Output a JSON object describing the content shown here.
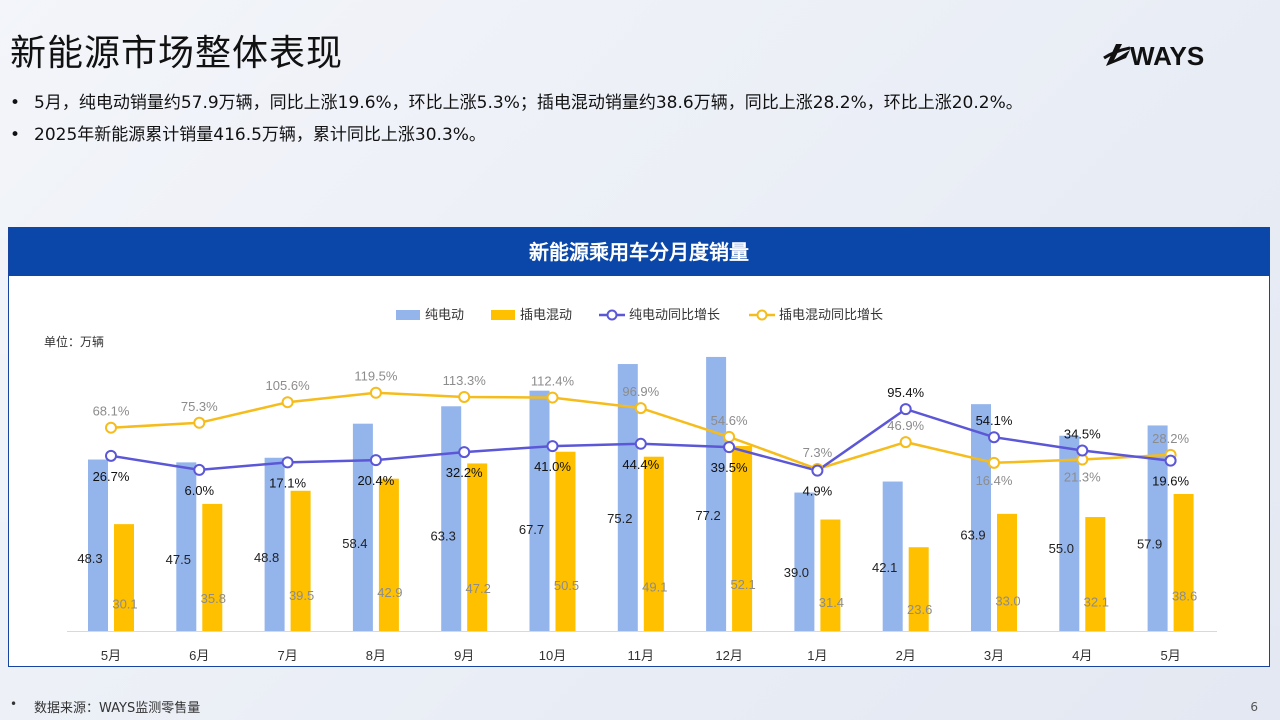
{
  "page": {
    "title": "新能源市场整体表现",
    "logo_text": "WAYS",
    "bullet_marker": "•",
    "bullets": [
      "5月，纯电动销量约57.9万辆，同比上涨19.6%，环比上涨5.3%；插电混动销量约38.6万辆，同比上涨28.2%，环比上涨20.2%。",
      "2025年新能源累计销量416.5万辆，累计同比上涨30.3%。"
    ],
    "footer_source": "数据来源：WAYS监测零售量",
    "page_number": "6"
  },
  "colors": {
    "header_bg": "#0b47a8",
    "bev_bar": "#94b5ec",
    "phev_bar": "#ffc000",
    "bev_line": "#5b57d6",
    "phev_line": "#f5bc1c"
  },
  "chart_data": {
    "type": "bar",
    "title": "新能源乘用车分月度销量",
    "unit_label": "单位：万辆",
    "legend_position": "top-center",
    "grid": false,
    "categories": [
      "5月",
      "6月",
      "7月",
      "8月",
      "9月",
      "10月",
      "11月",
      "12月",
      "1月",
      "2月",
      "3月",
      "4月",
      "5月"
    ],
    "series": [
      {
        "name": "纯电动",
        "kind": "bar",
        "values": [
          48.3,
          47.5,
          48.8,
          58.4,
          63.3,
          67.7,
          75.2,
          77.2,
          39.0,
          42.1,
          63.9,
          55.0,
          57.9
        ]
      },
      {
        "name": "插电混动",
        "kind": "bar",
        "values": [
          30.1,
          35.8,
          39.5,
          42.9,
          47.2,
          50.5,
          49.1,
          52.1,
          31.4,
          23.6,
          33.0,
          32.1,
          38.6
        ]
      },
      {
        "name": "纯电动同比增长",
        "kind": "line",
        "unit": "%",
        "values": [
          26.7,
          6.0,
          17.1,
          20.4,
          32.2,
          41.0,
          44.4,
          39.5,
          4.9,
          95.4,
          54.1,
          34.5,
          19.6
        ]
      },
      {
        "name": "插电混动同比增长",
        "kind": "line",
        "unit": "%",
        "values": [
          68.1,
          75.3,
          105.6,
          119.5,
          113.3,
          112.4,
          96.9,
          54.6,
          7.3,
          46.9,
          16.4,
          21.3,
          28.2
        ]
      }
    ],
    "bar_labels": {
      "bev": [
        "48.3",
        "47.5",
        "48.8",
        "58.4",
        "63.3",
        "67.7",
        "75.2",
        "77.2",
        "39.0",
        "42.1",
        "63.9",
        "55.0",
        "57.9"
      ],
      "phev": [
        "30.1",
        "35.8",
        "39.5",
        "42.9",
        "47.2",
        "50.5",
        "49.1",
        "52.1",
        "31.4",
        "23.6",
        "33.0",
        "32.1",
        "38.6"
      ]
    },
    "line_labels": {
      "bev": [
        "26.7%",
        "6.0%",
        "17.1%",
        "20.4%",
        "32.2%",
        "41.0%",
        "44.4%",
        "39.5%",
        "4.9%",
        "95.4%",
        "54.1%",
        "34.5%",
        "19.6%"
      ],
      "phev": [
        "68.1%",
        "75.3%",
        "105.6%",
        "119.5%",
        "113.3%",
        "112.4%",
        "96.9%",
        "54.6%",
        "7.3%",
        "46.9%",
        "16.4%",
        "21.3%",
        "28.2%"
      ]
    }
  }
}
